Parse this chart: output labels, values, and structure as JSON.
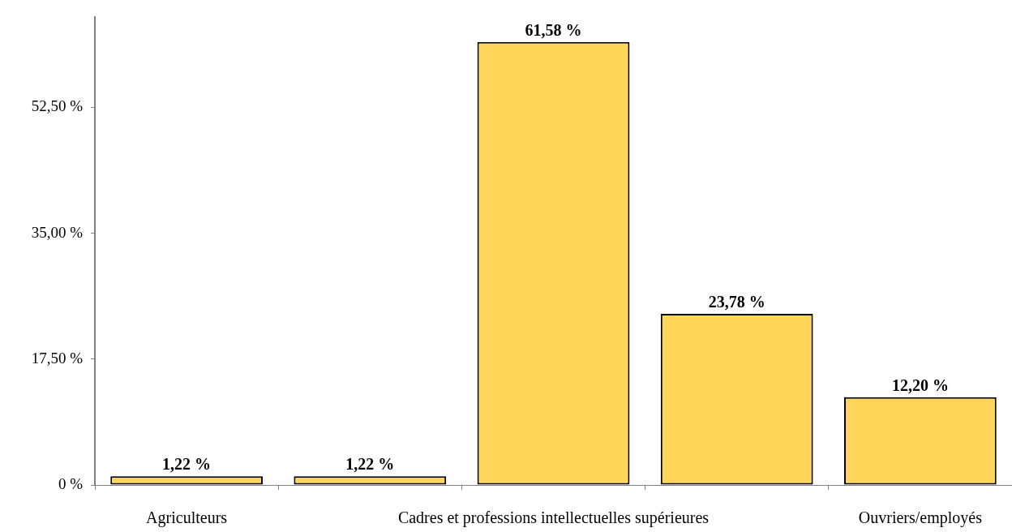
{
  "chart_data": {
    "type": "bar",
    "categories": [
      "Agriculteurs",
      null,
      "Cadres et professions intellectuelles supérieures",
      null,
      "Ouvriers/employés"
    ],
    "values": [
      1.22,
      1.22,
      61.58,
      23.78,
      12.2
    ],
    "value_labels": [
      "1,22 %",
      "1,22 %",
      "61,58 %",
      "23,78 %",
      "12,20 %"
    ],
    "color": "#ffd65a",
    "ylim": [
      0,
      65
    ],
    "yticks": [
      {
        "value": 0,
        "label": "0 %"
      },
      {
        "value": 17.5,
        "label": "17,50 %"
      },
      {
        "value": 35,
        "label": "35,00 %"
      },
      {
        "value": 52.5,
        "label": "52,50 %"
      }
    ],
    "grid": false
  }
}
